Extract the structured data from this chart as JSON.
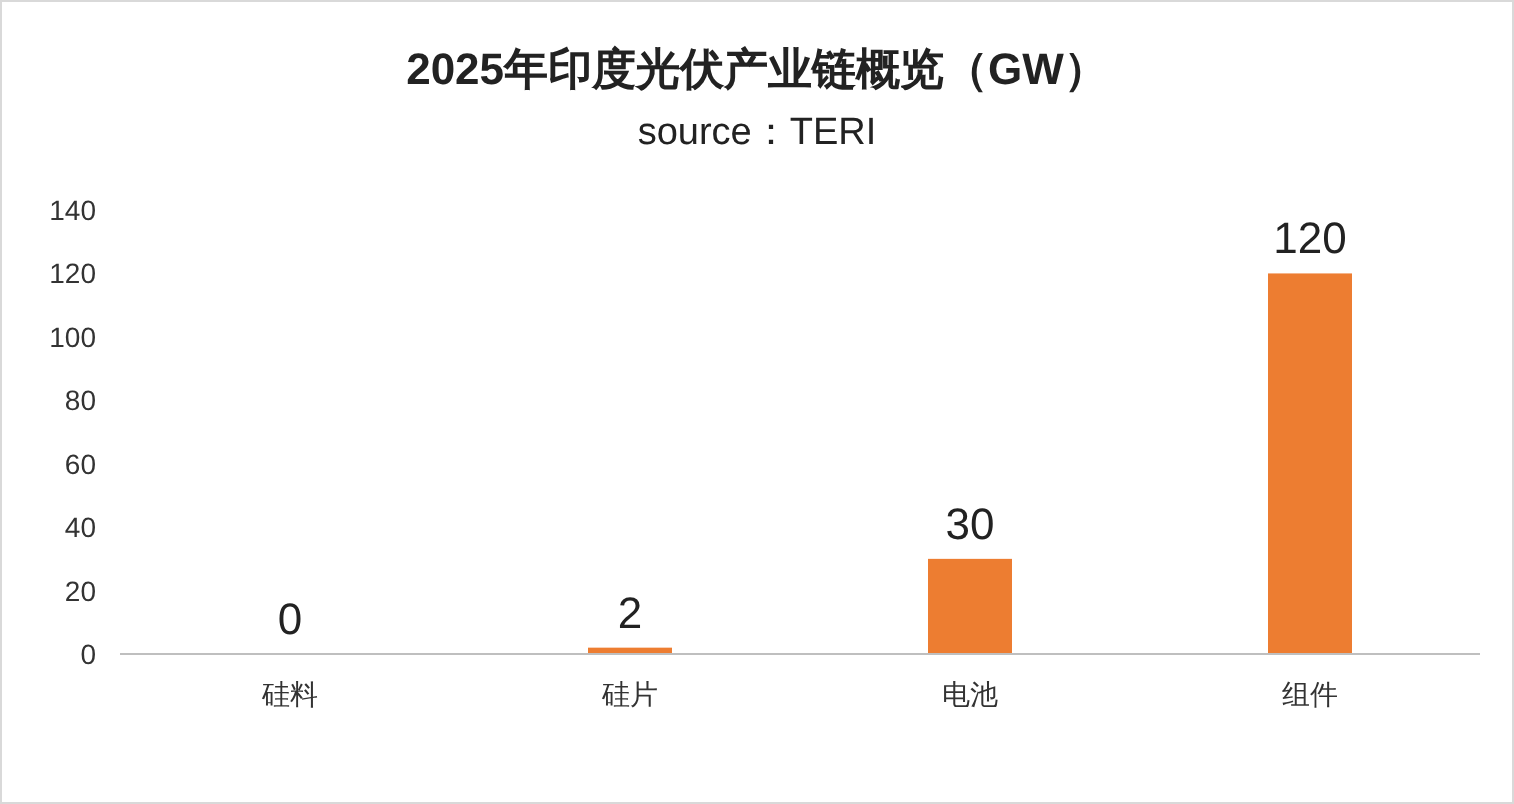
{
  "chart_data": {
    "type": "bar",
    "title": "2025年印度光伏产业链概览（GW）",
    "subtitle": "source：TERI",
    "categories": [
      "硅料",
      "硅片",
      "电池",
      "组件"
    ],
    "values": [
      0,
      2,
      30,
      120
    ],
    "color": "#ed7d31",
    "ylim": [
      0,
      140
    ],
    "yticks": [
      0,
      20,
      40,
      60,
      80,
      100,
      120,
      140
    ],
    "grid": false,
    "data_labels": true
  }
}
